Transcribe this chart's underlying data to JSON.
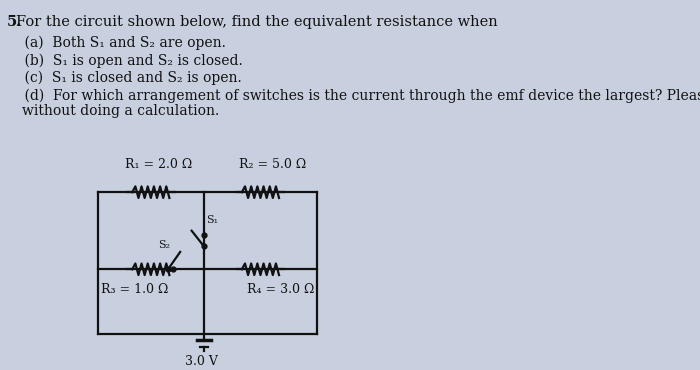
{
  "title_number": "5.",
  "title_text": " For the circuit shown below, find the equivalent resistance when",
  "parts": [
    "    (a)  Both S₁ and S₂ are open.",
    "    (b)  S₁ is open and S₂ is closed.",
    "    (c)  S₁ is closed and S₂ is open.",
    "    (d)  For which arrangement of switches is the current through the emf device the largest? Please explain\n           without doing a calculation."
  ],
  "R1_label": "R₁ = 2.0 Ω",
  "R2_label": "R₂ = 5.0 Ω",
  "R3_label": "R₃ = 1.0 Ω",
  "R4_label": "R₄ = 3.0 Ω",
  "V_label": "3.0 V",
  "S1_label": "S₁",
  "S2_label": "S₂",
  "bg_color": "#c8d0e0",
  "text_color": "#111111",
  "circuit_color": "#111111",
  "font_size_title": 10.5,
  "font_size_parts": 10,
  "font_size_circuit": 9,
  "circuit_lw": 1.6
}
